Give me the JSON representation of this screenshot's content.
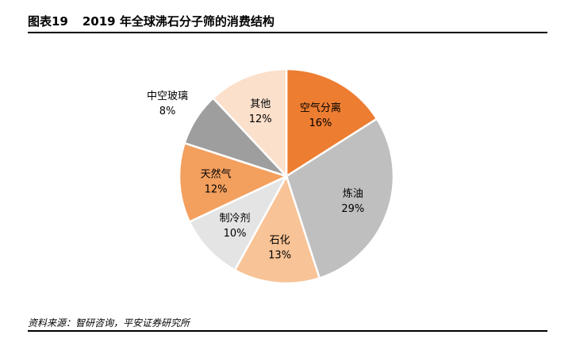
{
  "figure": {
    "number": "图表19",
    "title": "2019 年全球沸石分子筛的消费结构"
  },
  "source": "资料来源：智研咨询，平安证券研究所",
  "chart_data": {
    "type": "pie",
    "start_angle_deg": 0,
    "direction": "clockwise",
    "slices": [
      {
        "label": "空气分离",
        "value": 16,
        "display": "16%",
        "color": "#ED7D31",
        "label_inside": true
      },
      {
        "label": "炼油",
        "value": 29,
        "display": "29%",
        "color": "#BFBFBF",
        "label_inside": true
      },
      {
        "label": "石化",
        "value": 13,
        "display": "13%",
        "color": "#F8C396",
        "label_inside": true
      },
      {
        "label": "制冷剂",
        "value": 10,
        "display": "10%",
        "color": "#E4E4E4",
        "label_inside": true
      },
      {
        "label": "天然气",
        "value": 12,
        "display": "12%",
        "color": "#F39F5E",
        "label_inside": true
      },
      {
        "label": "中空玻璃",
        "value": 8,
        "display": "8%",
        "color": "#9E9E9E",
        "label_inside": false
      },
      {
        "label": "其他",
        "value": 12,
        "display": "12%",
        "color": "#FBE0CC",
        "label_inside": true
      }
    ]
  }
}
